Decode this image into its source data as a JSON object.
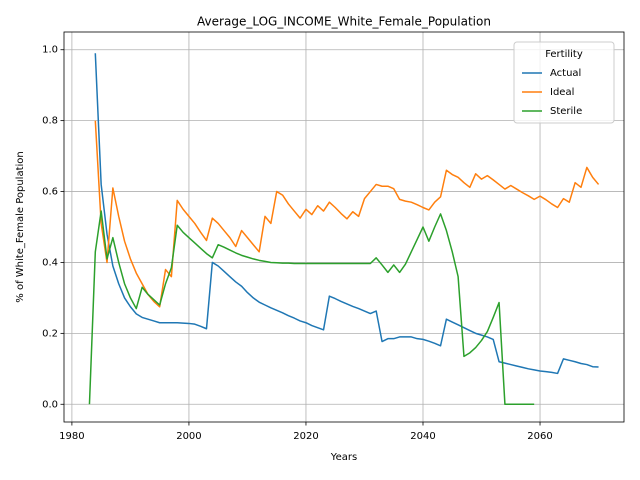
{
  "chart_data": {
    "type": "line",
    "title": "Average_LOG_INCOME_White_Female_Population",
    "x_label": "Years",
    "y_label": "% of White_Female Population",
    "legend_title": "Fertility",
    "legend_position": "upper right",
    "grid": true,
    "xlim": [
      1978.65,
      2074.35
    ],
    "ylim": [
      -0.05,
      1.05
    ],
    "xticks": [
      1980,
      2000,
      2020,
      2040,
      2060
    ],
    "yticks": [
      {
        "value": 0,
        "label": "0.0"
      },
      0.2,
      0.4,
      0.6,
      0.8,
      {
        "value": 1,
        "label": "1.0"
      }
    ],
    "x": [
      1983,
      1984,
      1985,
      1986,
      1987,
      1988,
      1989,
      1990,
      1991,
      1992,
      1993,
      1994,
      1995,
      1996,
      1997,
      1998,
      1999,
      2000,
      2001,
      2002,
      2003,
      2004,
      2005,
      2006,
      2007,
      2008,
      2009,
      2010,
      2011,
      2012,
      2013,
      2014,
      2015,
      2016,
      2017,
      2018,
      2019,
      2020,
      2021,
      2022,
      2023,
      2024,
      2025,
      2026,
      2027,
      2028,
      2029,
      2030,
      2031,
      2032,
      2033,
      2034,
      2035,
      2036,
      2037,
      2038,
      2039,
      2040,
      2041,
      2042,
      2043,
      2044,
      2045,
      2046,
      2047,
      2048,
      2049,
      2050,
      2051,
      2052,
      2053,
      2054,
      2055,
      2056,
      2057,
      2058,
      2059,
      2060,
      2061,
      2062,
      2063,
      2064,
      2065,
      2066,
      2067,
      2068,
      2069,
      2070
    ],
    "series": [
      {
        "name": "Actual",
        "color": "#1f77b4",
        "values": [
          null,
          0.99,
          0.62,
          0.48,
          0.39,
          0.34,
          0.3,
          0.275,
          0.255,
          0.245,
          0.24,
          0.235,
          0.23,
          0.23,
          0.23,
          0.23,
          0.229,
          0.228,
          0.226,
          0.22,
          0.213,
          0.4,
          0.39,
          0.375,
          0.36,
          0.345,
          0.333,
          0.315,
          0.3,
          0.288,
          0.28,
          0.272,
          0.265,
          0.258,
          0.25,
          0.243,
          0.235,
          0.23,
          0.222,
          0.216,
          0.21,
          0.305,
          0.298,
          0.29,
          0.283,
          0.276,
          0.27,
          0.263,
          0.256,
          0.263,
          0.177,
          0.185,
          0.185,
          0.19,
          0.19,
          0.19,
          0.185,
          0.183,
          0.178,
          0.172,
          0.165,
          0.24,
          0.232,
          0.224,
          0.216,
          0.208,
          0.2,
          0.195,
          0.19,
          0.183,
          0.12,
          0.116,
          0.112,
          0.108,
          0.104,
          0.1,
          0.097,
          0.094,
          0.092,
          0.09,
          0.087,
          0.128,
          0.124,
          0.12,
          0.115,
          0.112,
          0.106,
          0.105
        ]
      },
      {
        "name": "Ideal",
        "color": "#ff7f0e",
        "values": [
          null,
          0.8,
          0.51,
          0.4,
          0.61,
          0.53,
          0.46,
          0.41,
          0.37,
          0.34,
          0.31,
          0.29,
          0.275,
          0.38,
          0.36,
          0.575,
          0.55,
          0.53,
          0.51,
          0.485,
          0.462,
          0.525,
          0.51,
          0.49,
          0.47,
          0.445,
          0.49,
          0.47,
          0.45,
          0.43,
          0.53,
          0.51,
          0.6,
          0.59,
          0.565,
          0.545,
          0.525,
          0.55,
          0.535,
          0.56,
          0.545,
          0.57,
          0.555,
          0.538,
          0.523,
          0.543,
          0.53,
          0.58,
          0.6,
          0.62,
          0.615,
          0.615,
          0.608,
          0.578,
          0.573,
          0.57,
          0.563,
          0.555,
          0.548,
          0.57,
          0.585,
          0.66,
          0.648,
          0.64,
          0.625,
          0.612,
          0.65,
          0.635,
          0.645,
          0.633,
          0.62,
          0.607,
          0.617,
          0.607,
          0.597,
          0.588,
          0.578,
          0.587,
          0.577,
          0.565,
          0.555,
          0.58,
          0.57,
          0.625,
          0.612,
          0.668,
          0.64,
          0.62
        ]
      },
      {
        "name": "Sterile",
        "color": "#2ca02c",
        "values": [
          0,
          0.43,
          0.545,
          0.41,
          0.47,
          0.4,
          0.34,
          0.3,
          0.27,
          0.33,
          0.31,
          0.295,
          0.28,
          0.34,
          0.385,
          0.505,
          0.485,
          0.47,
          0.455,
          0.44,
          0.425,
          0.413,
          0.45,
          0.443,
          0.435,
          0.427,
          0.42,
          0.415,
          0.41,
          0.406,
          0.403,
          0.4,
          0.399,
          0.398,
          0.398,
          0.397,
          0.397,
          0.397,
          0.397,
          0.397,
          0.397,
          0.397,
          0.397,
          0.397,
          0.397,
          0.397,
          0.397,
          0.397,
          0.397,
          0.413,
          0.393,
          0.372,
          0.393,
          0.372,
          0.395,
          0.43,
          0.465,
          0.5,
          0.46,
          0.5,
          0.537,
          0.49,
          0.43,
          0.36,
          0.135,
          0.145,
          0.16,
          0.18,
          0.205,
          0.245,
          0.287,
          0,
          0,
          0,
          0,
          0,
          0,
          null,
          null,
          null,
          null,
          null,
          null,
          null,
          null,
          null,
          null,
          null
        ]
      }
    ]
  }
}
